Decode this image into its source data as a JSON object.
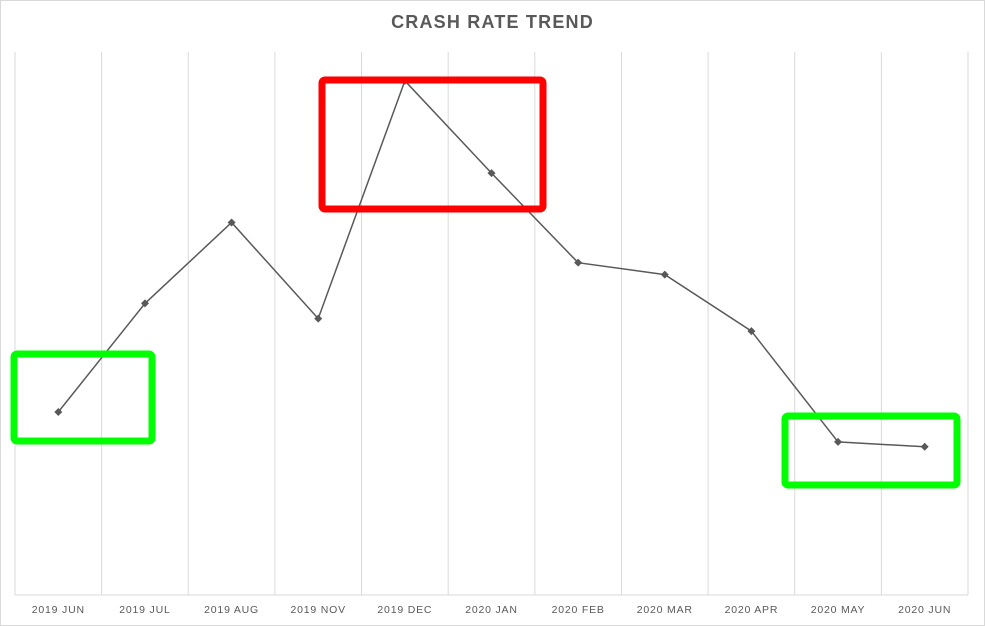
{
  "chart_data": {
    "type": "line",
    "title": "CRASH RATE TREND",
    "xlabel": "",
    "ylabel": "",
    "categories": [
      "2019 JUN",
      "2019 JUL",
      "2019 AUG",
      "2019 NOV",
      "2019 DEC",
      "2020 JAN",
      "2020 FEB",
      "2020 MAR",
      "2020 APR",
      "2020 MAY",
      "2020 JUN"
    ],
    "series": [
      {
        "values": [
          33.7,
          53.7,
          68.6,
          50.9,
          94.7,
          77.7,
          61.2,
          59.0,
          48.6,
          28.2,
          27.3
        ]
      }
    ],
    "ylim": [
      0,
      100
    ],
    "grid": "vertical",
    "legend": "none",
    "colors": {
      "line": "#595959",
      "marker": "#595959",
      "gridline": "#d9d9d9",
      "highlight_high": "#ff0000",
      "highlight_low": "#00ff00"
    }
  }
}
